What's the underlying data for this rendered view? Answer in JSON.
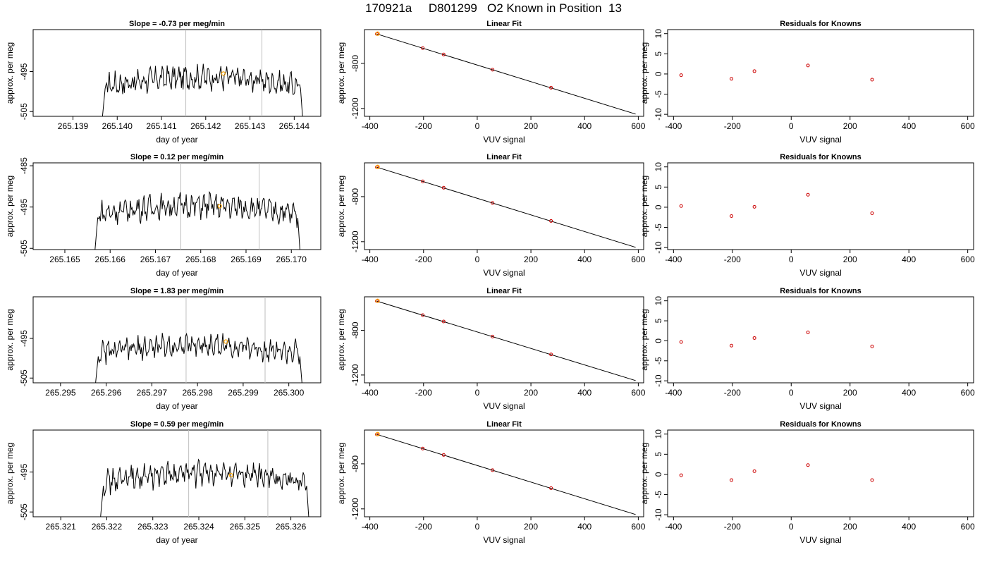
{
  "main_title": "170921a     D801299   O2 Known in Position  13",
  "colors": {
    "trace": "#000000",
    "vline": "#bebebe",
    "highlight": "#ffa500",
    "resid": "#cc0000",
    "fit": "#000000"
  },
  "chart_data": [
    {
      "row": 1,
      "panel": "trace",
      "type": "line",
      "title": "Slope =  -0.73  per meg/min",
      "xlabel": "day of year",
      "ylabel": "approx. per meg",
      "xlim": [
        265.1381,
        265.1446
      ],
      "ylim": [
        -506.2,
        -484.5
      ],
      "xticks": [
        "265.139",
        "265.140",
        "265.141",
        "265.142",
        "265.143",
        "265.144"
      ],
      "yticks": [
        "-495",
        "-505"
      ],
      "trace_start": 265.13965,
      "trace_end": 265.1442,
      "trace_mean": -497.5,
      "vlines": [
        265.14155,
        265.14327
      ],
      "highlight": {
        "x": 265.1424,
        "y": -495.5
      }
    },
    {
      "row": 1,
      "panel": "fit",
      "type": "line",
      "title": "Linear Fit",
      "xlabel": "VUV signal",
      "ylabel": "approx. per meg",
      "xlim": [
        -420,
        620
      ],
      "ylim": [
        -1270,
        -500
      ],
      "xticks": [
        "-400",
        "-200",
        "0",
        "200",
        "400",
        "600"
      ],
      "yticks": [
        "-800",
        "-1200"
      ],
      "line": {
        "x": [
          -375,
          590
        ],
        "y": [
          -538,
          -1250
        ]
      },
      "points": [
        {
          "x": -374,
          "y": -538
        },
        {
          "x": -203,
          "y": -664
        },
        {
          "x": -125,
          "y": -721
        },
        {
          "x": 57,
          "y": -856
        },
        {
          "x": 275,
          "y": -1016
        }
      ],
      "highlight": {
        "x": -371,
        "y": -536
      }
    },
    {
      "row": 1,
      "panel": "resid",
      "type": "scatter",
      "title": "Residuals for Knowns",
      "xlabel": "VUV signal",
      "ylabel": "approx. per meg",
      "xlim": [
        -420,
        620
      ],
      "ylim": [
        -10.5,
        11
      ],
      "xticks": [
        "-400",
        "-200",
        "0",
        "200",
        "400",
        "600"
      ],
      "yticks": [
        "-10",
        "-5",
        "0",
        "5",
        "10"
      ],
      "points": [
        {
          "x": -374,
          "y": -0.3
        },
        {
          "x": -203,
          "y": -1.2
        },
        {
          "x": -125,
          "y": 0.7
        },
        {
          "x": 57,
          "y": 2.1
        },
        {
          "x": 275,
          "y": -1.4
        }
      ]
    },
    {
      "row": 2,
      "panel": "trace",
      "type": "line",
      "title": "Slope =  0.12  per meg/min",
      "xlabel": "day of year",
      "ylabel": "approx. per meg",
      "xlim": [
        265.1643,
        265.17065
      ],
      "ylim": [
        -505.3,
        -484.3
      ],
      "xticks": [
        "265.165",
        "265.166",
        "265.167",
        "265.168",
        "265.169",
        "265.170"
      ],
      "yticks": [
        "-485",
        "-495",
        "-505"
      ],
      "trace_start": 265.16565,
      "trace_end": 265.1702,
      "trace_mean": -495.7,
      "vlines": [
        265.16756,
        265.16929
      ],
      "highlight": {
        "x": 265.16842,
        "y": -494.8
      }
    },
    {
      "row": 2,
      "panel": "fit",
      "type": "line",
      "title": "Linear Fit",
      "xlabel": "VUV signal",
      "ylabel": "approx. per meg",
      "xlim": [
        -420,
        620
      ],
      "ylim": [
        -1270,
        -500
      ],
      "xticks": [
        "-400",
        "-200",
        "0",
        "200",
        "400",
        "600"
      ],
      "yticks": [
        "-800",
        "-1200"
      ],
      "line": {
        "x": [
          -375,
          590
        ],
        "y": [
          -538,
          -1250
        ]
      },
      "points": [
        {
          "x": -374,
          "y": -538
        },
        {
          "x": -203,
          "y": -664
        },
        {
          "x": -125,
          "y": -721
        },
        {
          "x": 57,
          "y": -856
        },
        {
          "x": 275,
          "y": -1016
        }
      ],
      "highlight": {
        "x": -371,
        "y": -536
      }
    },
    {
      "row": 2,
      "panel": "resid",
      "type": "scatter",
      "title": "Residuals for Knowns",
      "xlabel": "VUV signal",
      "ylabel": "approx. per meg",
      "xlim": [
        -420,
        620
      ],
      "ylim": [
        -10.5,
        11
      ],
      "xticks": [
        "-400",
        "-200",
        "0",
        "200",
        "400",
        "600"
      ],
      "yticks": [
        "-10",
        "-5",
        "0",
        "5",
        "10"
      ],
      "points": [
        {
          "x": -374,
          "y": 0.3
        },
        {
          "x": -203,
          "y": -2.2
        },
        {
          "x": -125,
          "y": 0.1
        },
        {
          "x": 57,
          "y": 3.1
        },
        {
          "x": 275,
          "y": -1.5
        }
      ]
    },
    {
      "row": 3,
      "panel": "trace",
      "type": "line",
      "title": "Slope =  1.83  per meg/min",
      "xlabel": "day of year",
      "ylabel": "approx. per meg",
      "xlim": [
        265.2944,
        265.3007
      ],
      "ylim": [
        -506.2,
        -484.5
      ],
      "xticks": [
        "265.295",
        "265.296",
        "265.297",
        "265.298",
        "265.299",
        "265.300"
      ],
      "yticks": [
        "-495",
        "-505"
      ],
      "trace_start": 265.29575,
      "trace_end": 265.3003,
      "trace_mean": -497.8,
      "vlines": [
        265.29775,
        265.29948
      ],
      "highlight": {
        "x": 265.29862,
        "y": -495.8
      }
    },
    {
      "row": 3,
      "panel": "fit",
      "type": "line",
      "title": "Linear Fit",
      "xlabel": "VUV signal",
      "ylabel": "approx. per meg",
      "xlim": [
        -420,
        620
      ],
      "ylim": [
        -1270,
        -500
      ],
      "xticks": [
        "-400",
        "-200",
        "0",
        "200",
        "400",
        "600"
      ],
      "yticks": [
        "-800",
        "-1200"
      ],
      "line": {
        "x": [
          -375,
          590
        ],
        "y": [
          -538,
          -1250
        ]
      },
      "points": [
        {
          "x": -374,
          "y": -538
        },
        {
          "x": -203,
          "y": -664
        },
        {
          "x": -125,
          "y": -721
        },
        {
          "x": 57,
          "y": -856
        },
        {
          "x": 275,
          "y": -1016
        }
      ],
      "highlight": {
        "x": -371,
        "y": -536
      }
    },
    {
      "row": 3,
      "panel": "resid",
      "type": "scatter",
      "title": "Residuals for Knowns",
      "xlabel": "VUV signal",
      "ylabel": "approx. per meg",
      "xlim": [
        -420,
        620
      ],
      "ylim": [
        -10.5,
        11
      ],
      "xticks": [
        "-400",
        "-200",
        "0",
        "200",
        "400",
        "600"
      ],
      "yticks": [
        "-10",
        "-5",
        "0",
        "5",
        "10"
      ],
      "points": [
        {
          "x": -374,
          "y": -0.3
        },
        {
          "x": -203,
          "y": -1.2
        },
        {
          "x": -125,
          "y": 0.7
        },
        {
          "x": 57,
          "y": 2.1
        },
        {
          "x": 275,
          "y": -1.4
        }
      ]
    },
    {
      "row": 4,
      "panel": "trace",
      "type": "line",
      "title": "Slope =  0.59  per meg/min",
      "xlabel": "day of year",
      "ylabel": "approx. per meg",
      "xlim": [
        265.3204,
        265.32665
      ],
      "ylim": [
        -506.2,
        -484.5
      ],
      "xticks": [
        "265.321",
        "265.322",
        "265.323",
        "265.324",
        "265.325",
        "265.326"
      ],
      "yticks": [
        "-495",
        "-505"
      ],
      "trace_start": 265.32185,
      "trace_end": 265.3264,
      "trace_mean": -496.5,
      "vlines": [
        265.32378,
        265.3255
      ],
      "highlight": {
        "x": 265.3247,
        "y": -495.8
      }
    },
    {
      "row": 4,
      "panel": "fit",
      "type": "line",
      "title": "Linear Fit",
      "xlabel": "VUV signal",
      "ylabel": "approx. per meg",
      "xlim": [
        -420,
        620
      ],
      "ylim": [
        -1270,
        -500
      ],
      "xticks": [
        "-400",
        "-200",
        "0",
        "200",
        "400",
        "600"
      ],
      "yticks": [
        "-800",
        "-1200"
      ],
      "line": {
        "x": [
          -375,
          590
        ],
        "y": [
          -538,
          -1250
        ]
      },
      "points": [
        {
          "x": -374,
          "y": -538
        },
        {
          "x": -203,
          "y": -664
        },
        {
          "x": -125,
          "y": -721
        },
        {
          "x": 57,
          "y": -856
        },
        {
          "x": 275,
          "y": -1016
        }
      ],
      "highlight": {
        "x": -371,
        "y": -536
      }
    },
    {
      "row": 4,
      "panel": "resid",
      "type": "scatter",
      "title": "Residuals for Knowns",
      "xlabel": "VUV signal",
      "ylabel": "approx. per meg",
      "xlim": [
        -420,
        620
      ],
      "ylim": [
        -10.5,
        11
      ],
      "xticks": [
        "-400",
        "-200",
        "0",
        "200",
        "400",
        "600"
      ],
      "yticks": [
        "-10",
        "-5",
        "0",
        "5",
        "10"
      ],
      "points": [
        {
          "x": -374,
          "y": -0.2
        },
        {
          "x": -203,
          "y": -1.4
        },
        {
          "x": -125,
          "y": 0.8
        },
        {
          "x": 57,
          "y": 2.3
        },
        {
          "x": 275,
          "y": -1.4
        }
      ]
    }
  ]
}
